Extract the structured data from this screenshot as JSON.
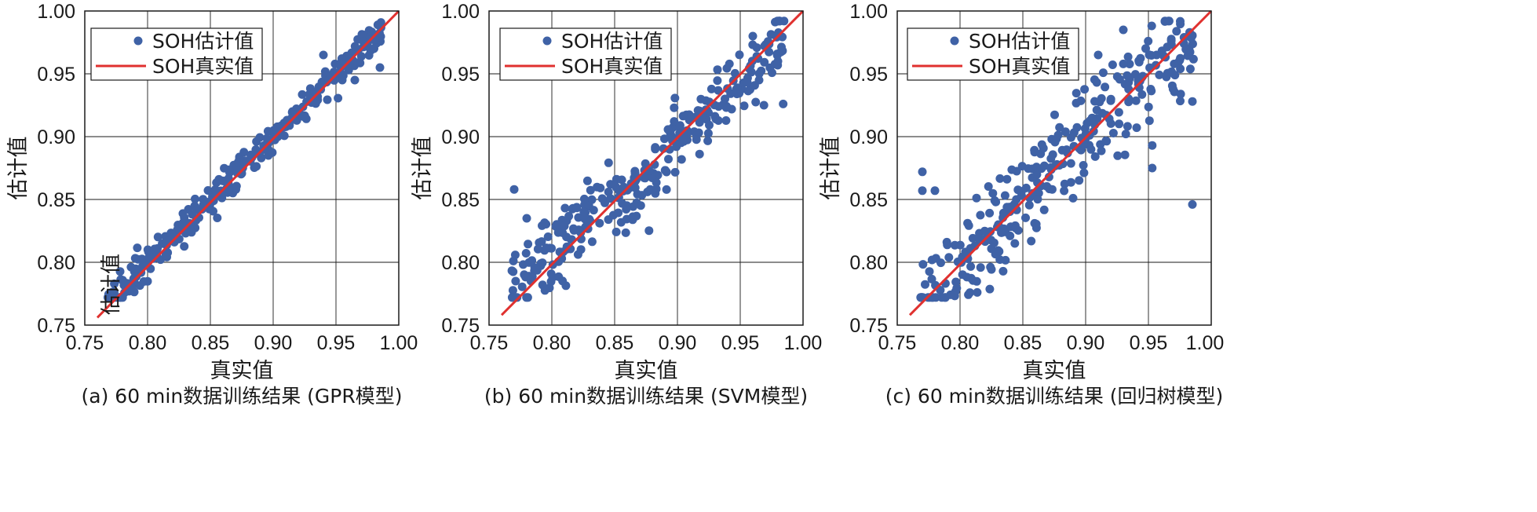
{
  "colors": {
    "points": "#3f62a6",
    "line": "#e0312f",
    "grid": "#1a1a1a",
    "frame": "#1a1a1a"
  },
  "chart_data": [
    {
      "type": "scatter",
      "title": "(a) 60 min数据训练结果 (GPR模型)",
      "xlabel": "真实值",
      "ylabel": "估计值",
      "xlim": [
        0.75,
        1.0
      ],
      "ylim": [
        0.75,
        1.0
      ],
      "xticks": [
        "0.75",
        "0.80",
        "0.85",
        "0.90",
        "0.95",
        "1.00"
      ],
      "yticks": [
        "0.75",
        "0.80",
        "0.85",
        "0.90",
        "0.95",
        "1.00"
      ],
      "legend": {
        "position": "top-left",
        "entries": [
          "SOH估计值",
          "SOH真实值"
        ]
      },
      "reference_line": {
        "name": "SOH真实值",
        "from": [
          0.76,
          0.756
        ],
        "to": [
          1.0,
          1.0
        ]
      },
      "annotation": "估计值",
      "noise": 0.006,
      "outliers": [
        [
          0.94,
          0.965
        ],
        [
          0.955,
          0.945
        ],
        [
          0.965,
          0.945
        ],
        [
          0.985,
          0.955
        ],
        [
          0.98,
          0.97
        ]
      ],
      "series": [
        {
          "name": "SOH估计值",
          "points": []
        }
      ]
    },
    {
      "type": "scatter",
      "title": "(b) 60 min数据训练结果 (SVM模型)",
      "xlabel": "真实值",
      "ylabel": "估计值",
      "xlim": [
        0.75,
        1.0
      ],
      "ylim": [
        0.75,
        1.0
      ],
      "xticks": [
        "0.75",
        "0.80",
        "0.85",
        "0.90",
        "0.95",
        "1.00"
      ],
      "yticks": [
        "0.75",
        "0.80",
        "0.85",
        "0.90",
        "0.95",
        "1.00"
      ],
      "legend": {
        "position": "top-left",
        "entries": [
          "SOH估计值",
          "SOH真实值"
        ]
      },
      "reference_line": {
        "name": "SOH真实值",
        "from": [
          0.76,
          0.758
        ],
        "to": [
          1.0,
          1.0
        ]
      },
      "noise": 0.015,
      "outliers": [
        [
          0.77,
          0.858
        ],
        [
          0.78,
          0.835
        ],
        [
          0.96,
          0.98
        ],
        [
          0.98,
          0.96
        ],
        [
          0.965,
          0.945
        ]
      ],
      "series": [
        {
          "name": "SOH估计值",
          "points": []
        }
      ]
    },
    {
      "type": "scatter",
      "title": "(c) 60 min数据训练结果 (回归树模型)",
      "xlabel": "真实值",
      "ylabel": "估计值",
      "xlim": [
        0.75,
        1.0
      ],
      "ylim": [
        0.75,
        1.0
      ],
      "xticks": [
        "0.75",
        "0.80",
        "0.85",
        "0.90",
        "0.95",
        "1.00"
      ],
      "yticks": [
        "0.75",
        "0.80",
        "0.85",
        "0.90",
        "0.95",
        "1.00"
      ],
      "legend": {
        "position": "top-left",
        "entries": [
          "SOH估计值",
          "SOH真实值"
        ]
      },
      "reference_line": {
        "name": "SOH真实值",
        "from": [
          0.76,
          0.758
        ],
        "to": [
          1.0,
          1.0
        ]
      },
      "noise": 0.02,
      "outliers": [
        [
          0.77,
          0.872
        ],
        [
          0.77,
          0.857
        ],
        [
          0.78,
          0.857
        ],
        [
          0.985,
          0.846
        ],
        [
          0.985,
          0.928
        ],
        [
          0.953,
          0.893
        ],
        [
          0.953,
          0.875
        ],
        [
          0.89,
          0.851
        ],
        [
          0.91,
          0.965
        ],
        [
          0.93,
          0.985
        ]
      ],
      "series": [
        {
          "name": "SOH估计值",
          "points": []
        }
      ]
    }
  ]
}
